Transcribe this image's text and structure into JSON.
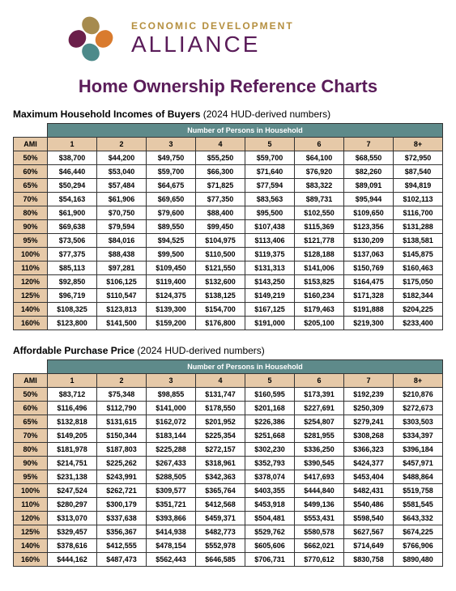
{
  "brand": {
    "top": "ECONOMIC DEVELOPMENT",
    "bottom": "ALLIANCE",
    "logo_colors": {
      "top": "#a68b4e",
      "right": "#d97b2e",
      "bottom": "#4d8a8a",
      "left": "#6b1f4a"
    }
  },
  "page_title": "Home Ownership Reference Charts",
  "table1": {
    "title": "Maximum Household Incomes of Buyers",
    "sub": "(2024 HUD-derived numbers)",
    "header": "Number of Persons in Household",
    "ami_label": "AMI",
    "cols": [
      "1",
      "2",
      "3",
      "4",
      "5",
      "6",
      "7",
      "8+"
    ],
    "rows": [
      {
        "ami": "50%",
        "v": [
          "$38,700",
          "$44,200",
          "$49,750",
          "$55,250",
          "$59,700",
          "$64,100",
          "$68,550",
          "$72,950"
        ]
      },
      {
        "ami": "60%",
        "v": [
          "$46,440",
          "$53,040",
          "$59,700",
          "$66,300",
          "$71,640",
          "$76,920",
          "$82,260",
          "$87,540"
        ]
      },
      {
        "ami": "65%",
        "v": [
          "$50,294",
          "$57,484",
          "$64,675",
          "$71,825",
          "$77,594",
          "$83,322",
          "$89,091",
          "$94,819"
        ]
      },
      {
        "ami": "70%",
        "v": [
          "$54,163",
          "$61,906",
          "$69,650",
          "$77,350",
          "$83,563",
          "$89,731",
          "$95,944",
          "$102,113"
        ]
      },
      {
        "ami": "80%",
        "v": [
          "$61,900",
          "$70,750",
          "$79,600",
          "$88,400",
          "$95,500",
          "$102,550",
          "$109,650",
          "$116,700"
        ]
      },
      {
        "ami": "90%",
        "v": [
          "$69,638",
          "$79,594",
          "$89,550",
          "$99,450",
          "$107,438",
          "$115,369",
          "$123,356",
          "$131,288"
        ]
      },
      {
        "ami": "95%",
        "v": [
          "$73,506",
          "$84,016",
          "$94,525",
          "$104,975",
          "$113,406",
          "$121,778",
          "$130,209",
          "$138,581"
        ]
      },
      {
        "ami": "100%",
        "v": [
          "$77,375",
          "$88,438",
          "$99,500",
          "$110,500",
          "$119,375",
          "$128,188",
          "$137,063",
          "$145,875"
        ]
      },
      {
        "ami": "110%",
        "v": [
          "$85,113",
          "$97,281",
          "$109,450",
          "$121,550",
          "$131,313",
          "$141,006",
          "$150,769",
          "$160,463"
        ]
      },
      {
        "ami": "120%",
        "v": [
          "$92,850",
          "$106,125",
          "$119,400",
          "$132,600",
          "$143,250",
          "$153,825",
          "$164,475",
          "$175,050"
        ]
      },
      {
        "ami": "125%",
        "v": [
          "$96,719",
          "$110,547",
          "$124,375",
          "$138,125",
          "$149,219",
          "$160,234",
          "$171,328",
          "$182,344"
        ]
      },
      {
        "ami": "140%",
        "v": [
          "$108,325",
          "$123,813",
          "$139,300",
          "$154,700",
          "$167,125",
          "$179,463",
          "$191,888",
          "$204,225"
        ]
      },
      {
        "ami": "160%",
        "v": [
          "$123,800",
          "$141,500",
          "$159,200",
          "$176,800",
          "$191,000",
          "$205,100",
          "$219,300",
          "$233,400"
        ]
      }
    ]
  },
  "table2": {
    "title": "Affordable Purchase Price",
    "sub": "(2024 HUD-derived numbers)",
    "header": "Number of Persons in Household",
    "ami_label": "AMI",
    "cols": [
      "1",
      "2",
      "3",
      "4",
      "5",
      "6",
      "7",
      "8+"
    ],
    "rows": [
      {
        "ami": "50%",
        "v": [
          "$83,712",
          "$75,348",
          "$98,855",
          "$131,747",
          "$160,595",
          "$173,391",
          "$192,239",
          "$210,876"
        ]
      },
      {
        "ami": "60%",
        "v": [
          "$116,496",
          "$112,790",
          "$141,000",
          "$178,550",
          "$201,168",
          "$227,691",
          "$250,309",
          "$272,673"
        ]
      },
      {
        "ami": "65%",
        "v": [
          "$132,818",
          "$131,615",
          "$162,072",
          "$201,952",
          "$226,386",
          "$254,807",
          "$279,241",
          "$303,503"
        ]
      },
      {
        "ami": "70%",
        "v": [
          "$149,205",
          "$150,344",
          "$183,144",
          "$225,354",
          "$251,668",
          "$281,955",
          "$308,268",
          "$334,397"
        ]
      },
      {
        "ami": "80%",
        "v": [
          "$181,978",
          "$187,803",
          "$225,288",
          "$272,157",
          "$302,230",
          "$336,250",
          "$366,323",
          "$396,184"
        ]
      },
      {
        "ami": "90%",
        "v": [
          "$214,751",
          "$225,262",
          "$267,433",
          "$318,961",
          "$352,793",
          "$390,545",
          "$424,377",
          "$457,971"
        ]
      },
      {
        "ami": "95%",
        "v": [
          "$231,138",
          "$243,991",
          "$288,505",
          "$342,363",
          "$378,074",
          "$417,693",
          "$453,404",
          "$488,864"
        ]
      },
      {
        "ami": "100%",
        "v": [
          "$247,524",
          "$262,721",
          "$309,577",
          "$365,764",
          "$403,355",
          "$444,840",
          "$482,431",
          "$519,758"
        ]
      },
      {
        "ami": "110%",
        "v": [
          "$280,297",
          "$300,179",
          "$351,721",
          "$412,568",
          "$453,918",
          "$499,136",
          "$540,486",
          "$581,545"
        ]
      },
      {
        "ami": "120%",
        "v": [
          "$313,070",
          "$337,638",
          "$393,866",
          "$459,371",
          "$504,481",
          "$553,431",
          "$598,540",
          "$643,332"
        ]
      },
      {
        "ami": "125%",
        "v": [
          "$329,457",
          "$356,367",
          "$414,938",
          "$482,773",
          "$529,762",
          "$580,578",
          "$627,567",
          "$674,225"
        ]
      },
      {
        "ami": "140%",
        "v": [
          "$378,616",
          "$412,555",
          "$478,154",
          "$552,978",
          "$605,606",
          "$662,021",
          "$714,649",
          "$766,906"
        ]
      },
      {
        "ami": "160%",
        "v": [
          "$444,162",
          "$487,473",
          "$562,443",
          "$646,585",
          "$706,731",
          "$770,612",
          "$830,758",
          "$890,480"
        ]
      }
    ]
  }
}
